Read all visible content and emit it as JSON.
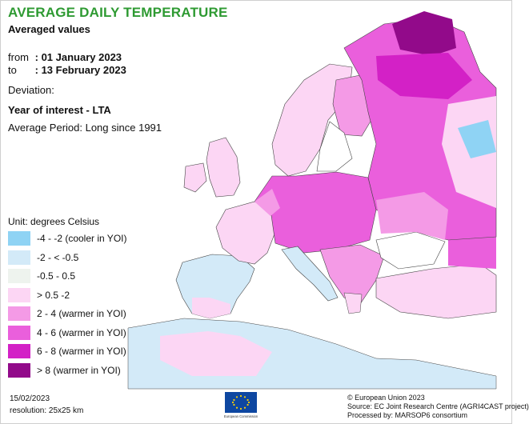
{
  "header": {
    "title": "AVERAGE DAILY TEMPERATURE",
    "subtitle": "Averaged values"
  },
  "period": {
    "from_label": "from",
    "from_value": ": 01 January 2023",
    "to_label": "to",
    "to_value": ": 13 February 2023"
  },
  "deviation": {
    "label": "Deviation:",
    "year_of_interest": "Year of interest - LTA",
    "average_period": "Average Period: Long since 1991"
  },
  "legend": {
    "unit": "Unit: degrees Celsius",
    "items": [
      {
        "label": "-4 - -2 (cooler in YOI)",
        "color": "#8fd3f4"
      },
      {
        "label": "-2 - < -0.5",
        "color": "#d3eaf8"
      },
      {
        "label": "-0.5 - 0.5",
        "color": "#eef3ee"
      },
      {
        "label": "> 0.5 -2",
        "color": "#fcd6f4"
      },
      {
        "label": "2 - 4 (warmer in YOI)",
        "color": "#f49ae6"
      },
      {
        "label": "4 - 6 (warmer in YOI)",
        "color": "#ea5fdc"
      },
      {
        "label": "6 - 8 (warmer in YOI)",
        "color": "#d321c6"
      },
      {
        "label": "> 8 (warmer in YOI)",
        "color": "#920a8a"
      }
    ]
  },
  "footer": {
    "date": "15/02/2023",
    "resolution": "resolution: 25x25 km",
    "logo_text": "European Commission",
    "copyright": "© European Union 2023",
    "source": "Source: EC Joint Research Centre (AGRI4CAST project)",
    "processed": "Processed by: MARSOP6 consortium"
  }
}
